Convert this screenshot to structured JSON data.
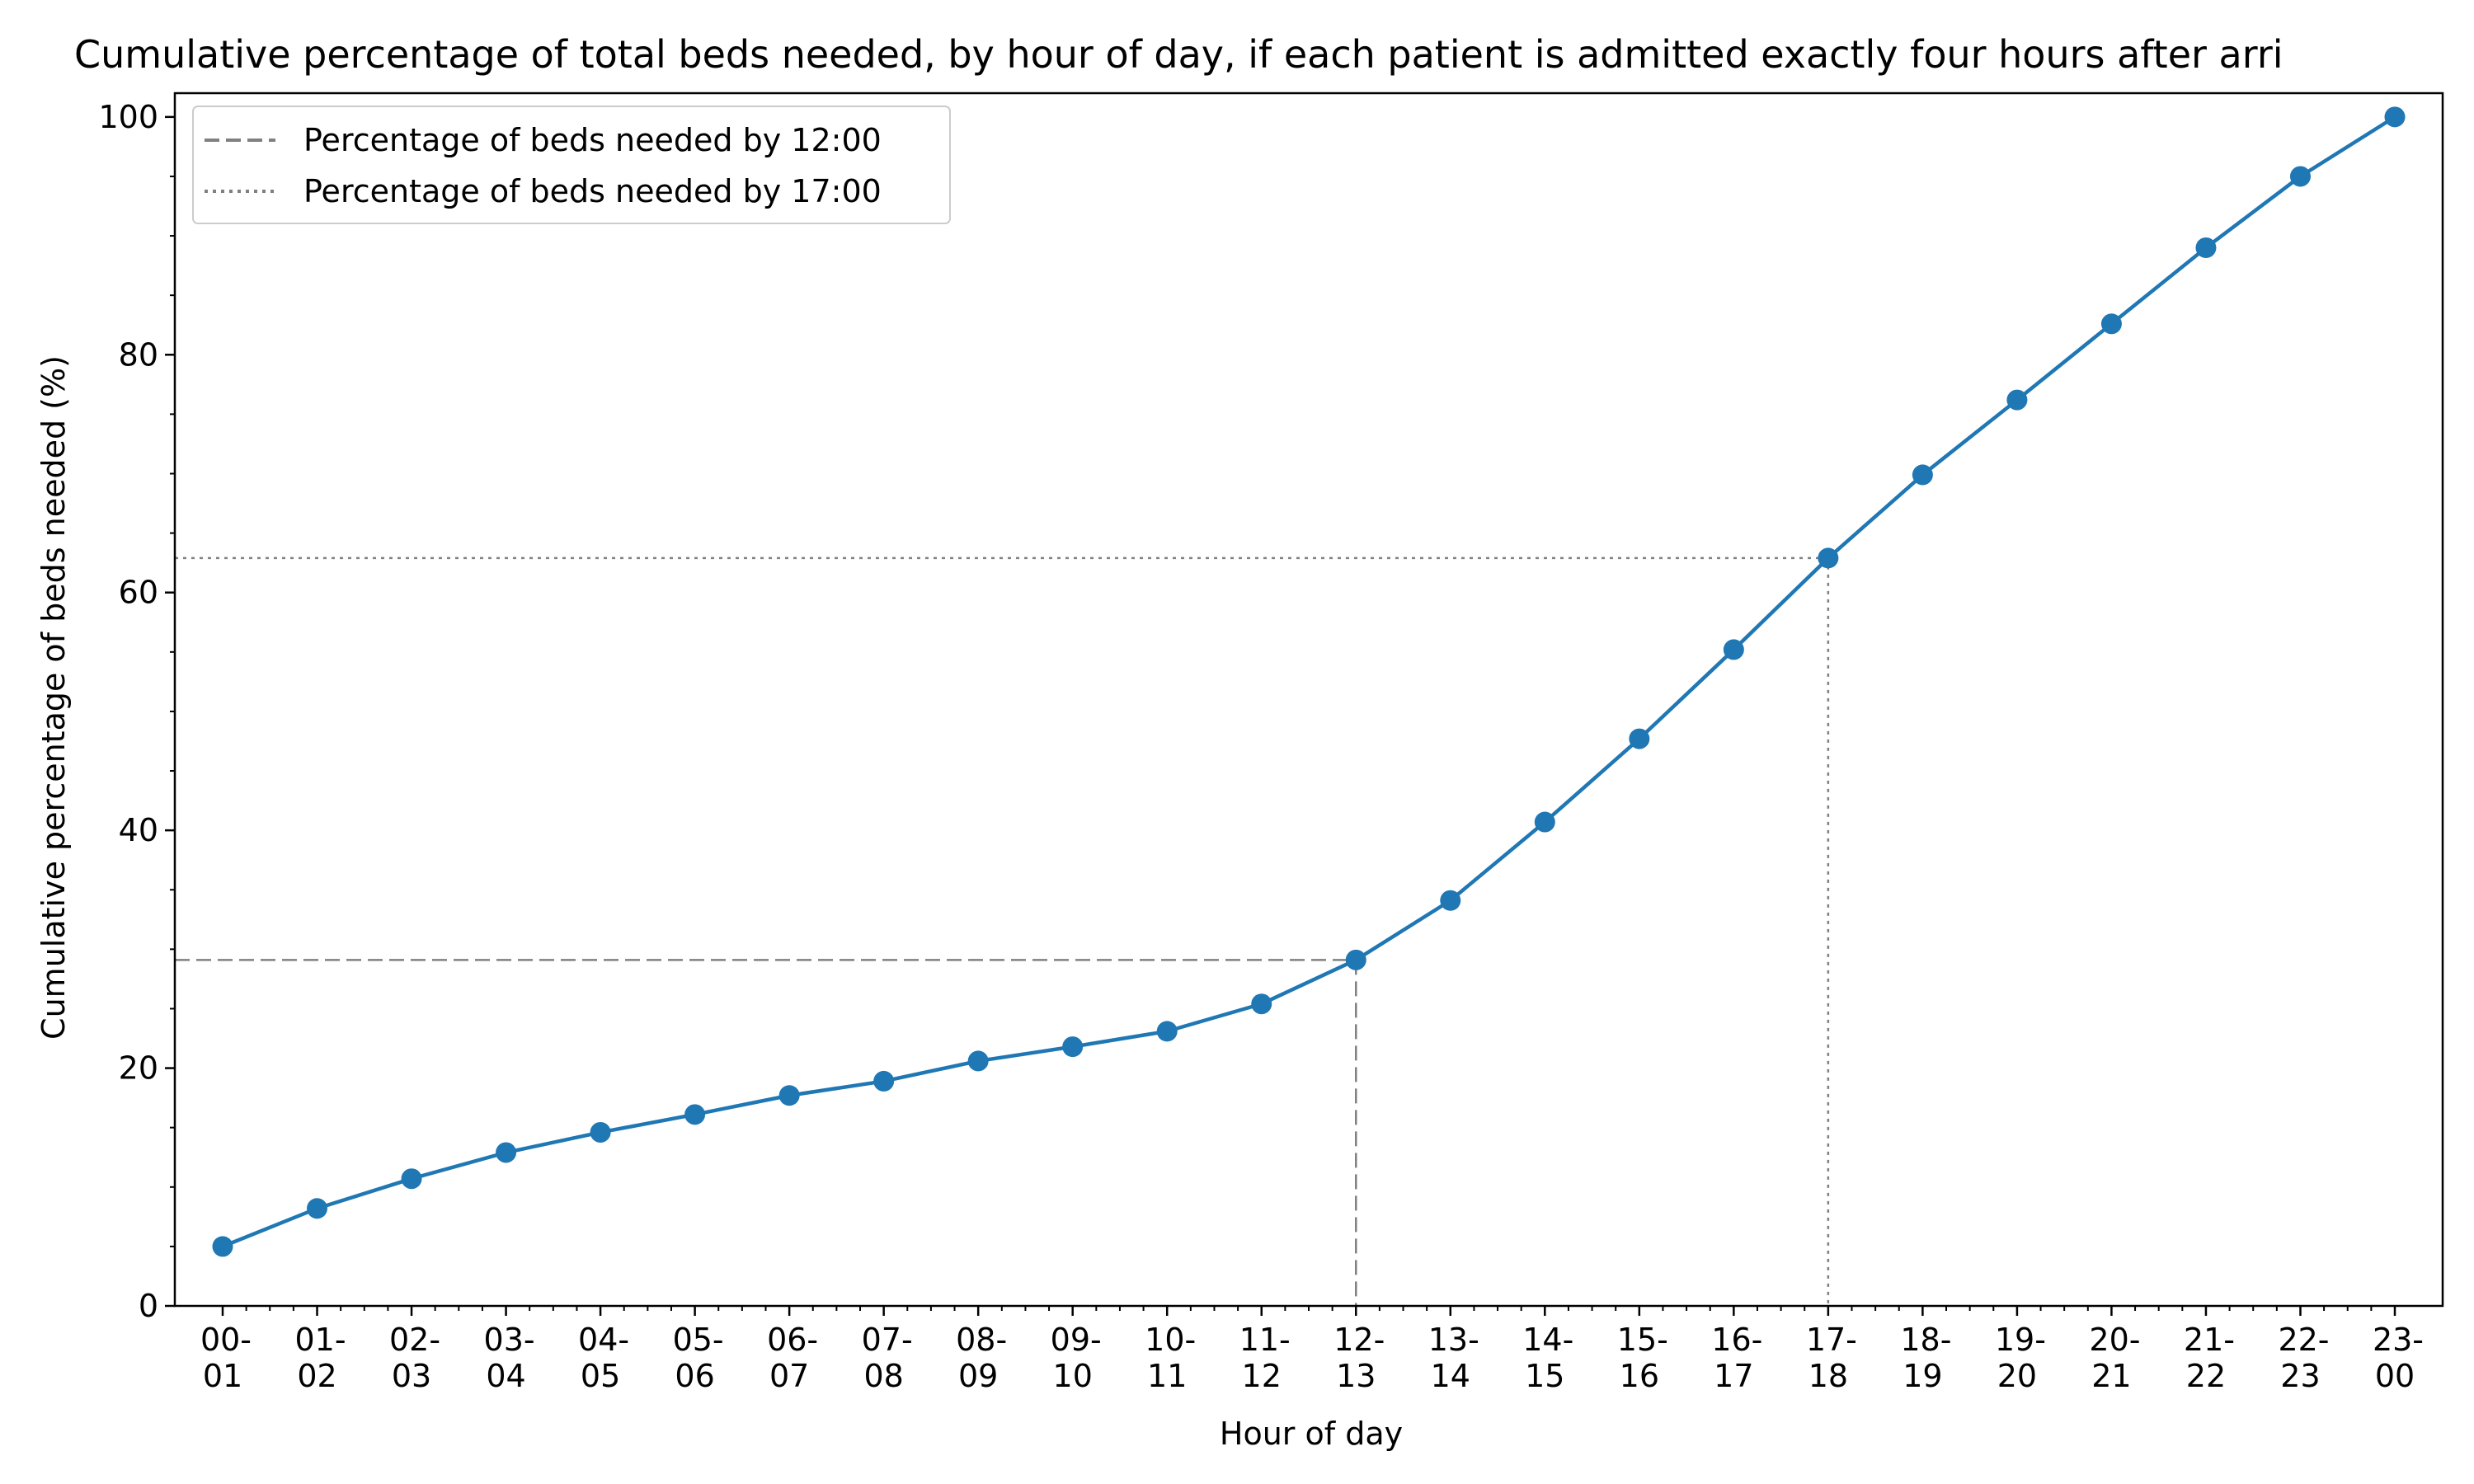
{
  "chart_data": {
    "type": "line",
    "title": "Cumulative percentage of total beds needed, by hour of day, if each patient is admitted exactly four hours after arri",
    "xlabel": "Hour of day",
    "ylabel": "Cumulative percentage of beds needed (%)",
    "ylim": [
      0,
      102
    ],
    "y_ticks": [
      0,
      20,
      40,
      60,
      80,
      100
    ],
    "grid": false,
    "legend_position": "top-left",
    "categories": [
      [
        "00-",
        "01"
      ],
      [
        "01-",
        "02"
      ],
      [
        "02-",
        "03"
      ],
      [
        "03-",
        "04"
      ],
      [
        "04-",
        "05"
      ],
      [
        "05-",
        "06"
      ],
      [
        "06-",
        "07"
      ],
      [
        "07-",
        "08"
      ],
      [
        "08-",
        "09"
      ],
      [
        "09-",
        "10"
      ],
      [
        "10-",
        "11"
      ],
      [
        "11-",
        "12"
      ],
      [
        "12-",
        "13"
      ],
      [
        "13-",
        "14"
      ],
      [
        "14-",
        "15"
      ],
      [
        "15-",
        "16"
      ],
      [
        "16-",
        "17"
      ],
      [
        "17-",
        "18"
      ],
      [
        "18-",
        "19"
      ],
      [
        "19-",
        "20"
      ],
      [
        "20-",
        "21"
      ],
      [
        "21-",
        "22"
      ],
      [
        "22-",
        "23"
      ],
      [
        "23-",
        "00"
      ]
    ],
    "series": [
      {
        "color": "#1f77b4",
        "values": [
          5.0,
          8.2,
          10.7,
          12.9,
          14.6,
          16.1,
          17.7,
          18.9,
          20.6,
          21.8,
          23.1,
          25.4,
          29.1,
          34.1,
          40.7,
          47.7,
          55.2,
          62.9,
          69.9,
          76.2,
          82.6,
          89.0,
          95.0,
          100.0
        ]
      }
    ],
    "reference_lines": [
      {
        "label": "Percentage of beds needed by 12:00",
        "style": "dashed",
        "color": "#808080",
        "category_index": 12,
        "value": 29.1
      },
      {
        "label": "Percentage of beds needed by 17:00",
        "style": "dotted",
        "color": "#808080",
        "category_index": 17,
        "value": 62.9
      }
    ]
  }
}
